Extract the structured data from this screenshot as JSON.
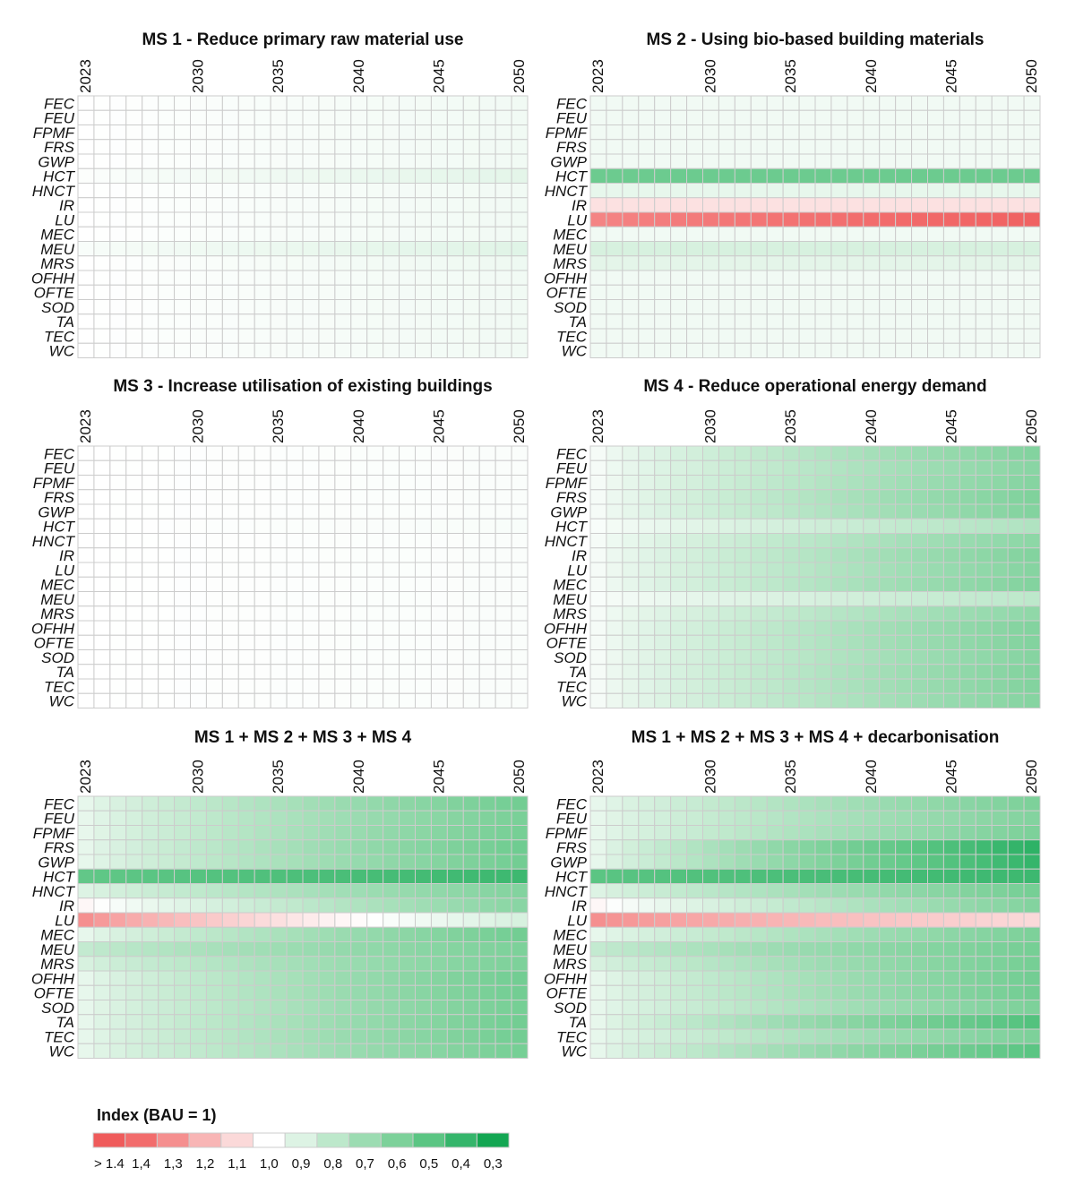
{
  "chart_data": [
    {
      "type": "heatmap",
      "title": "MS 1 - Reduce primary raw material use",
      "years": [
        2023,
        2024,
        2025,
        2026,
        2027,
        2028,
        2029,
        2030,
        2031,
        2032,
        2033,
        2034,
        2035,
        2036,
        2037,
        2038,
        2039,
        2040,
        2041,
        2042,
        2043,
        2044,
        2045,
        2046,
        2047,
        2048,
        2049,
        2050
      ],
      "year_labels": [
        "2023",
        "2030",
        "2035",
        "2040",
        "2045",
        "2050"
      ],
      "categories": [
        "FEC",
        "FEU",
        "FPMF",
        "FRS",
        "GWP",
        "HCT",
        "HNCT",
        "IR",
        "LU",
        "MEC",
        "MEU",
        "MRS",
        "OFHH",
        "OFTE",
        "SOD",
        "TA",
        "TEC",
        "WC"
      ],
      "row_params": {
        "FEC": [
          1.0,
          0.96
        ],
        "FEU": [
          1.0,
          0.96
        ],
        "FPMF": [
          1.0,
          0.96
        ],
        "FRS": [
          1.0,
          0.96
        ],
        "GWP": [
          1.0,
          0.96
        ],
        "HCT": [
          0.99,
          0.92
        ],
        "HNCT": [
          1.0,
          0.96
        ],
        "IR": [
          1.0,
          0.96
        ],
        "LU": [
          1.0,
          0.96
        ],
        "MEC": [
          1.0,
          0.96
        ],
        "MEU": [
          0.98,
          0.91
        ],
        "MRS": [
          1.0,
          0.95
        ],
        "OFHH": [
          1.0,
          0.96
        ],
        "OFTE": [
          1.0,
          0.96
        ],
        "SOD": [
          1.0,
          0.96
        ],
        "TA": [
          1.0,
          0.96
        ],
        "TEC": [
          1.0,
          0.96
        ],
        "WC": [
          1.0,
          0.96
        ]
      }
    },
    {
      "type": "heatmap",
      "title": "MS 2 - Using bio-based building materials",
      "years": [
        2023,
        2024,
        2025,
        2026,
        2027,
        2028,
        2029,
        2030,
        2031,
        2032,
        2033,
        2034,
        2035,
        2036,
        2037,
        2038,
        2039,
        2040,
        2041,
        2042,
        2043,
        2044,
        2045,
        2046,
        2047,
        2048,
        2049,
        2050
      ],
      "year_labels": [
        "2023",
        "2030",
        "2035",
        "2040",
        "2045",
        "2050"
      ],
      "categories": [
        "FEC",
        "FEU",
        "FPMF",
        "FRS",
        "GWP",
        "HCT",
        "HNCT",
        "IR",
        "LU",
        "MEC",
        "MEU",
        "MRS",
        "OFHH",
        "OFTE",
        "SOD",
        "TA",
        "TEC",
        "WC"
      ],
      "row_params": {
        "FEC": [
          0.96,
          0.96
        ],
        "FEU": [
          0.96,
          0.96
        ],
        "FPMF": [
          0.96,
          0.96
        ],
        "FRS": [
          0.96,
          0.96
        ],
        "GWP": [
          0.96,
          0.96
        ],
        "HCT": [
          0.55,
          0.55
        ],
        "HNCT": [
          0.93,
          0.93
        ],
        "IR": [
          1.08,
          1.08
        ],
        "LU": [
          1.33,
          1.43
        ],
        "MEC": [
          0.96,
          0.96
        ],
        "MEU": [
          0.88,
          0.88
        ],
        "MRS": [
          0.92,
          0.92
        ],
        "OFHH": [
          0.96,
          0.96
        ],
        "OFTE": [
          0.96,
          0.96
        ],
        "SOD": [
          0.96,
          0.96
        ],
        "TA": [
          0.96,
          0.96
        ],
        "TEC": [
          0.96,
          0.96
        ],
        "WC": [
          0.96,
          0.96
        ]
      }
    },
    {
      "type": "heatmap",
      "title": "MS 3 - Increase utilisation of existing buildings",
      "years": [
        2023,
        2024,
        2025,
        2026,
        2027,
        2028,
        2029,
        2030,
        2031,
        2032,
        2033,
        2034,
        2035,
        2036,
        2037,
        2038,
        2039,
        2040,
        2041,
        2042,
        2043,
        2044,
        2045,
        2046,
        2047,
        2048,
        2049,
        2050
      ],
      "year_labels": [
        "2023",
        "2030",
        "2035",
        "2040",
        "2045",
        "2050"
      ],
      "categories": [
        "FEC",
        "FEU",
        "FPMF",
        "FRS",
        "GWP",
        "HCT",
        "HNCT",
        "IR",
        "LU",
        "MEC",
        "MEU",
        "MRS",
        "OFHH",
        "OFTE",
        "SOD",
        "TA",
        "TEC",
        "WC"
      ],
      "row_params": {
        "FEC": [
          1.0,
          0.985
        ],
        "FEU": [
          1.0,
          0.985
        ],
        "FPMF": [
          1.0,
          0.985
        ],
        "FRS": [
          1.0,
          0.985
        ],
        "GWP": [
          1.0,
          0.985
        ],
        "HCT": [
          1.0,
          0.98
        ],
        "HNCT": [
          1.0,
          0.985
        ],
        "IR": [
          1.0,
          0.985
        ],
        "LU": [
          1.0,
          0.985
        ],
        "MEC": [
          1.0,
          0.985
        ],
        "MEU": [
          1.0,
          0.985
        ],
        "MRS": [
          1.0,
          0.985
        ],
        "OFHH": [
          1.0,
          0.985
        ],
        "OFTE": [
          1.0,
          0.985
        ],
        "SOD": [
          1.0,
          0.985
        ],
        "TA": [
          1.0,
          0.985
        ],
        "TEC": [
          1.0,
          0.985
        ],
        "WC": [
          1.0,
          0.985
        ]
      }
    },
    {
      "type": "heatmap",
      "title": "MS 4 - Reduce operational energy demand",
      "years": [
        2023,
        2024,
        2025,
        2026,
        2027,
        2028,
        2029,
        2030,
        2031,
        2032,
        2033,
        2034,
        2035,
        2036,
        2037,
        2038,
        2039,
        2040,
        2041,
        2042,
        2043,
        2044,
        2045,
        2046,
        2047,
        2048,
        2049,
        2050
      ],
      "year_labels": [
        "2023",
        "2030",
        "2035",
        "2040",
        "2045",
        "2050"
      ],
      "categories": [
        "FEC",
        "FEU",
        "FPMF",
        "FRS",
        "GWP",
        "HCT",
        "HNCT",
        "IR",
        "LU",
        "MEC",
        "MEU",
        "MRS",
        "OFHH",
        "OFTE",
        "SOD",
        "TA",
        "TEC",
        "WC"
      ],
      "row_params": {
        "FEC": [
          0.97,
          0.62
        ],
        "FEU": [
          0.97,
          0.64
        ],
        "FPMF": [
          0.97,
          0.63
        ],
        "FRS": [
          0.97,
          0.61
        ],
        "GWP": [
          0.97,
          0.62
        ],
        "HCT": [
          0.98,
          0.76
        ],
        "HNCT": [
          0.97,
          0.65
        ],
        "IR": [
          0.97,
          0.62
        ],
        "LU": [
          0.97,
          0.63
        ],
        "MEC": [
          0.97,
          0.62
        ],
        "MEU": [
          0.98,
          0.8
        ],
        "MRS": [
          0.97,
          0.66
        ],
        "OFHH": [
          0.97,
          0.62
        ],
        "OFTE": [
          0.97,
          0.62
        ],
        "SOD": [
          0.97,
          0.63
        ],
        "TA": [
          0.97,
          0.62
        ],
        "TEC": [
          0.97,
          0.62
        ],
        "WC": [
          0.97,
          0.63
        ]
      }
    },
    {
      "type": "heatmap",
      "title": "MS 1 + MS 2 + MS 3 + MS 4",
      "years": [
        2023,
        2024,
        2025,
        2026,
        2027,
        2028,
        2029,
        2030,
        2031,
        2032,
        2033,
        2034,
        2035,
        2036,
        2037,
        2038,
        2039,
        2040,
        2041,
        2042,
        2043,
        2044,
        2045,
        2046,
        2047,
        2048,
        2049,
        2050
      ],
      "year_labels": [
        "2023",
        "2030",
        "2035",
        "2040",
        "2045",
        "2050"
      ],
      "categories": [
        "FEC",
        "FEU",
        "FPMF",
        "FRS",
        "GWP",
        "HCT",
        "HNCT",
        "IR",
        "LU",
        "MEC",
        "MEU",
        "MRS",
        "OFHH",
        "OFTE",
        "SOD",
        "TA",
        "TEC",
        "WC"
      ],
      "row_params": {
        "FEC": [
          0.93,
          0.57
        ],
        "FEU": [
          0.93,
          0.59
        ],
        "FPMF": [
          0.93,
          0.58
        ],
        "FRS": [
          0.93,
          0.56
        ],
        "GWP": [
          0.93,
          0.57
        ],
        "HCT": [
          0.52,
          0.42
        ],
        "HNCT": [
          0.9,
          0.62
        ],
        "IR": [
          1.02,
          0.64
        ],
        "LU": [
          1.3,
          0.88
        ],
        "MEC": [
          0.93,
          0.57
        ],
        "MEU": [
          0.82,
          0.6
        ],
        "MRS": [
          0.88,
          0.6
        ],
        "OFHH": [
          0.93,
          0.57
        ],
        "OFTE": [
          0.93,
          0.57
        ],
        "SOD": [
          0.93,
          0.58
        ],
        "TA": [
          0.93,
          0.57
        ],
        "TEC": [
          0.93,
          0.57
        ],
        "WC": [
          0.93,
          0.58
        ]
      }
    },
    {
      "type": "heatmap",
      "title": "MS 1 + MS 2 + MS 3 + MS 4 + decarbonisation",
      "years": [
        2023,
        2024,
        2025,
        2026,
        2027,
        2028,
        2029,
        2030,
        2031,
        2032,
        2033,
        2034,
        2035,
        2036,
        2037,
        2038,
        2039,
        2040,
        2041,
        2042,
        2043,
        2044,
        2045,
        2046,
        2047,
        2048,
        2049,
        2050
      ],
      "year_labels": [
        "2023",
        "2030",
        "2035",
        "2040",
        "2045",
        "2050"
      ],
      "categories": [
        "FEC",
        "FEU",
        "FPMF",
        "FRS",
        "GWP",
        "HCT",
        "HNCT",
        "IR",
        "LU",
        "MEC",
        "MEU",
        "MRS",
        "OFHH",
        "OFTE",
        "SOD",
        "TA",
        "TEC",
        "WC"
      ],
      "row_params": {
        "FEC": [
          0.93,
          0.6
        ],
        "FEU": [
          0.93,
          0.62
        ],
        "FPMF": [
          0.93,
          0.6
        ],
        "FRS": [
          0.93,
          0.38
        ],
        "GWP": [
          0.93,
          0.4
        ],
        "HCT": [
          0.5,
          0.42
        ],
        "HNCT": [
          0.9,
          0.58
        ],
        "IR": [
          1.02,
          0.62
        ],
        "LU": [
          1.3,
          1.1
        ],
        "MEC": [
          0.93,
          0.6
        ],
        "MEU": [
          0.82,
          0.58
        ],
        "MRS": [
          0.88,
          0.58
        ],
        "OFHH": [
          0.93,
          0.57
        ],
        "OFTE": [
          0.93,
          0.57
        ],
        "SOD": [
          0.93,
          0.6
        ],
        "TA": [
          0.93,
          0.48
        ],
        "TEC": [
          0.93,
          0.6
        ],
        "WC": [
          0.93,
          0.5
        ]
      }
    }
  ],
  "legend": {
    "title": "Index (BAU = 1)",
    "labels": [
      "> 1.4",
      "1,4",
      "1,3",
      "1,2",
      "1,1",
      "1,0",
      "0,9",
      "0,8",
      "0,7",
      "0,6",
      "0,5",
      "0,4",
      "0,3"
    ],
    "colors": [
      "#ef5b5b",
      "#f26c6c",
      "#f58f8f",
      "#f8b5b5",
      "#fbd9d9",
      "#ffffff",
      "#ddf3e4",
      "#bde8cb",
      "#9cdcb2",
      "#7dd19a",
      "#5bc583",
      "#35b56b",
      "#13a652"
    ]
  }
}
